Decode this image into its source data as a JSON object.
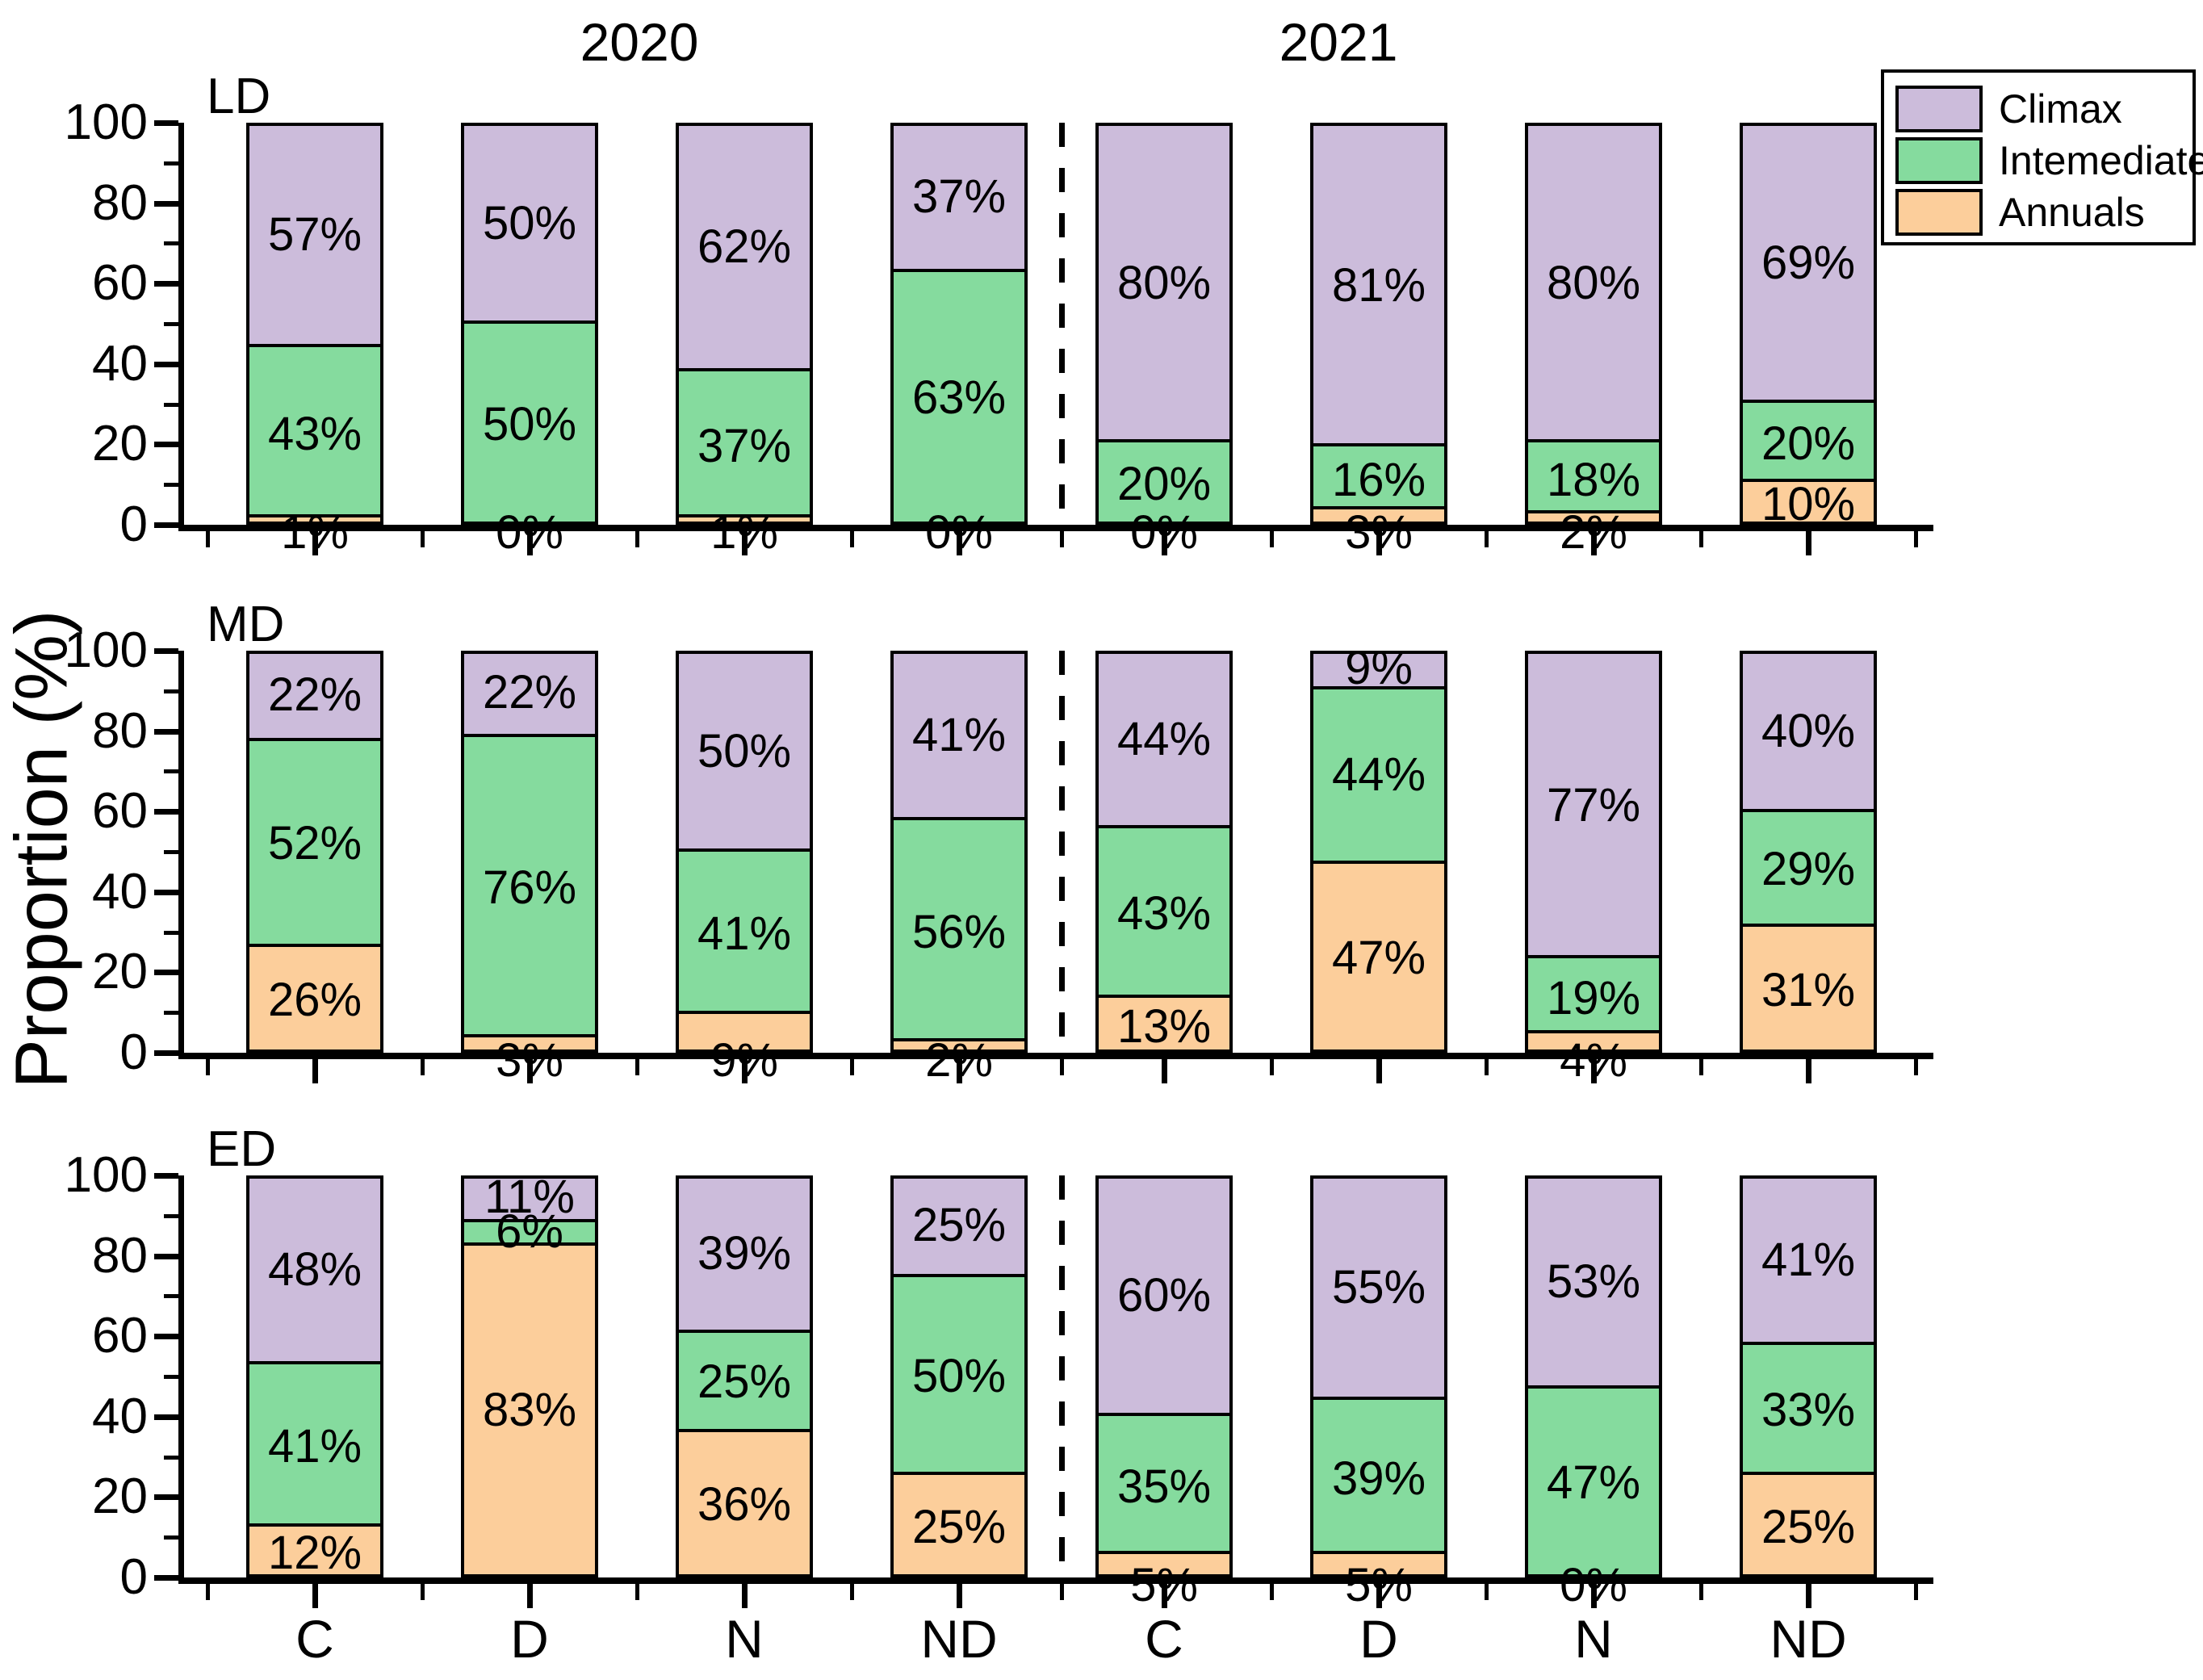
{
  "figure": {
    "ylabel": "Proportion (%)",
    "year_left": "2020",
    "year_right": "2021",
    "panels": [
      "LD",
      "MD",
      "ED"
    ],
    "y_ticks": [
      0,
      20,
      40,
      60,
      80,
      100
    ],
    "x_categories": [
      "C",
      "D",
      "N",
      "ND",
      "C",
      "D",
      "N",
      "ND"
    ],
    "legend": {
      "items": [
        {
          "label": "Climax",
          "color": "#ccbcdb"
        },
        {
          "label": "Intemediate",
          "color": "#85db9e"
        },
        {
          "label": "Annuals",
          "color": "#fcce9b"
        }
      ]
    },
    "colors": {
      "climax": "#ccbcdb",
      "intermediate": "#85db9e",
      "annuals": "#fcce9b",
      "axis": "#000000"
    }
  },
  "chart_data": [
    {
      "type": "bar",
      "stacked": true,
      "panel": "LD",
      "ylim": [
        0,
        100
      ],
      "grid": false,
      "categories": [
        "C",
        "D",
        "N",
        "ND",
        "C",
        "D",
        "N",
        "ND"
      ],
      "year_groups": [
        "2020",
        "2020",
        "2020",
        "2020",
        "2021",
        "2021",
        "2021",
        "2021"
      ],
      "series": [
        {
          "name": "Annuals",
          "values": [
            1,
            0,
            1,
            0,
            0,
            3,
            2,
            10
          ]
        },
        {
          "name": "Intemediate",
          "values": [
            43,
            50,
            37,
            63,
            20,
            16,
            18,
            20
          ]
        },
        {
          "name": "Climax",
          "values": [
            57,
            50,
            62,
            37,
            80,
            81,
            80,
            69
          ]
        }
      ]
    },
    {
      "type": "bar",
      "stacked": true,
      "panel": "MD",
      "ylim": [
        0,
        100
      ],
      "grid": false,
      "categories": [
        "C",
        "D",
        "N",
        "ND",
        "C",
        "D",
        "N",
        "ND"
      ],
      "year_groups": [
        "2020",
        "2020",
        "2020",
        "2020",
        "2021",
        "2021",
        "2021",
        "2021"
      ],
      "series": [
        {
          "name": "Annuals",
          "values": [
            26,
            3,
            9,
            2,
            13,
            47,
            4,
            31
          ]
        },
        {
          "name": "Intemediate",
          "values": [
            52,
            76,
            41,
            56,
            43,
            44,
            19,
            29
          ]
        },
        {
          "name": "Climax",
          "values": [
            22,
            22,
            50,
            41,
            44,
            9,
            77,
            40
          ]
        }
      ]
    },
    {
      "type": "bar",
      "stacked": true,
      "panel": "ED",
      "ylim": [
        0,
        100
      ],
      "grid": false,
      "categories": [
        "C",
        "D",
        "N",
        "ND",
        "C",
        "D",
        "N",
        "ND"
      ],
      "year_groups": [
        "2020",
        "2020",
        "2020",
        "2020",
        "2021",
        "2021",
        "2021",
        "2021"
      ],
      "series": [
        {
          "name": "Annuals",
          "values": [
            12,
            83,
            36,
            25,
            5,
            5,
            0,
            25
          ]
        },
        {
          "name": "Intemediate",
          "values": [
            41,
            6,
            25,
            50,
            35,
            39,
            47,
            33
          ]
        },
        {
          "name": "Climax",
          "values": [
            48,
            11,
            39,
            25,
            60,
            55,
            53,
            41
          ]
        }
      ]
    }
  ]
}
